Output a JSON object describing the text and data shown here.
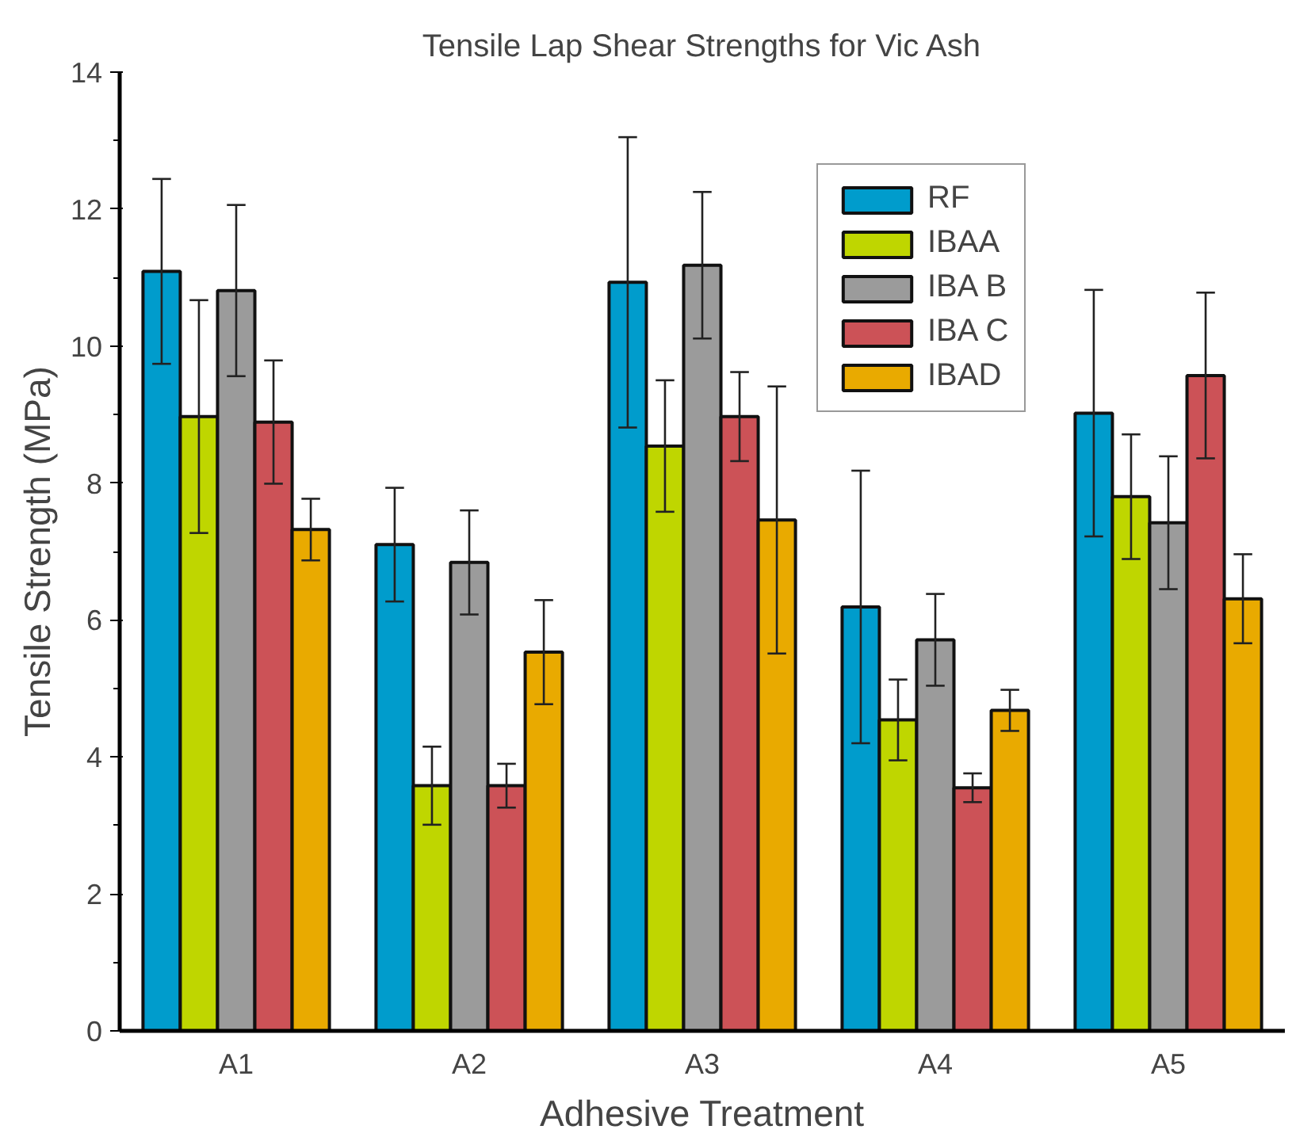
{
  "chart_data": {
    "type": "bar",
    "title": "Tensile Lap Shear Strengths for Vic Ash",
    "xlabel": "Adhesive Treatment",
    "ylabel": "Tensile Strength (MPa)",
    "categories": [
      "A1",
      "A2",
      "A3",
      "A4",
      "A5"
    ],
    "series": [
      {
        "name": "RF",
        "color": "#009ccc",
        "values": [
          11.09,
          7.1,
          10.93,
          6.19,
          9.02
        ],
        "errors": [
          1.35,
          0.83,
          2.12,
          1.99,
          1.8
        ]
      },
      {
        "name": "IBAA",
        "color": "#bfd600",
        "values": [
          8.97,
          3.58,
          8.54,
          4.54,
          7.8
        ],
        "errors": [
          1.7,
          0.57,
          0.96,
          0.59,
          0.91
        ]
      },
      {
        "name": "IBA B",
        "color": "#9b9b9b",
        "values": [
          10.81,
          6.84,
          11.18,
          5.71,
          7.42
        ],
        "errors": [
          1.25,
          0.76,
          1.07,
          0.67,
          0.97
        ]
      },
      {
        "name": "IBA C",
        "color": "#cc5257",
        "values": [
          8.89,
          3.58,
          8.97,
          3.55,
          9.57
        ],
        "errors": [
          0.9,
          0.32,
          0.65,
          0.21,
          1.21
        ]
      },
      {
        "name": "IBAD",
        "color": "#e9aa00",
        "values": [
          7.32,
          5.53,
          7.46,
          4.68,
          6.31
        ],
        "errors": [
          0.45,
          0.76,
          1.95,
          0.3,
          0.65
        ]
      }
    ],
    "ylim": [
      0,
      14
    ],
    "yticks": [
      0,
      2,
      4,
      6,
      8,
      10,
      12,
      14
    ],
    "grid": false,
    "legend": "top right"
  }
}
